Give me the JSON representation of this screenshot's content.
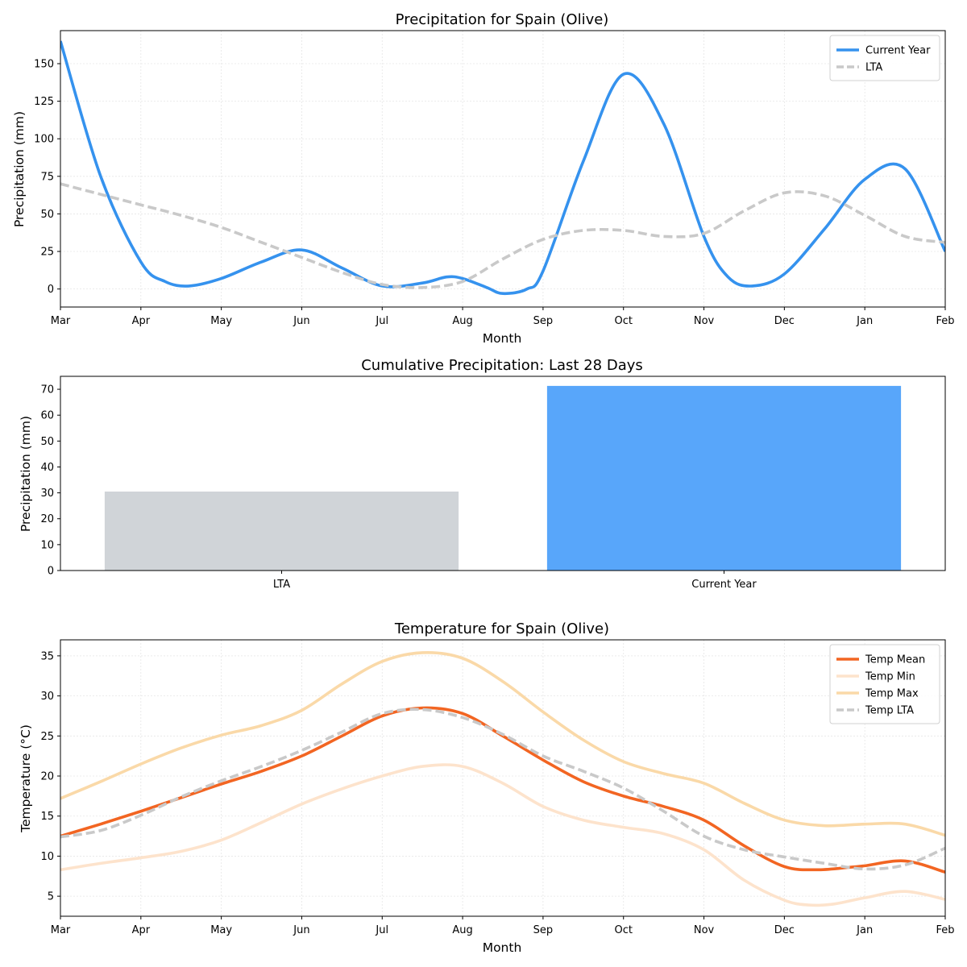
{
  "chart_data": [
    {
      "type": "line",
      "title": "Precipitation for Spain (Olive)",
      "xlabel": "Month",
      "ylabel": "Precipitation (mm)",
      "categories": [
        "Mar",
        "Apr",
        "May",
        "Jun",
        "Jul",
        "Aug",
        "Sep",
        "Oct",
        "Nov",
        "Dec",
        "Jan",
        "Feb"
      ],
      "xlim": [
        0,
        11
      ],
      "ylim": [
        -12,
        172
      ],
      "yticks": [
        0,
        25,
        50,
        75,
        100,
        125,
        150
      ],
      "grid": true,
      "legend": "top-right",
      "series": [
        {
          "name": "Current Year",
          "color": "#3592ee",
          "style": "solid",
          "points": [
            [
              0,
              165
            ],
            [
              0.5,
              75
            ],
            [
              1,
              18
            ],
            [
              1.3,
              5
            ],
            [
              1.6,
              2
            ],
            [
              2,
              7
            ],
            [
              2.5,
              18
            ],
            [
              3,
              26
            ],
            [
              3.5,
              14
            ],
            [
              4,
              2
            ],
            [
              4.5,
              4
            ],
            [
              4.8,
              8
            ],
            [
              5,
              7
            ],
            [
              5.3,
              1
            ],
            [
              5.5,
              -3
            ],
            [
              5.8,
              0
            ],
            [
              6,
              12
            ],
            [
              6.5,
              85
            ],
            [
              7,
              143
            ],
            [
              7.5,
              110
            ],
            [
              8,
              35
            ],
            [
              8.3,
              8
            ],
            [
              8.6,
              2
            ],
            [
              9,
              10
            ],
            [
              9.5,
              40
            ],
            [
              10,
              73
            ],
            [
              10.5,
              80
            ],
            [
              11,
              25
            ]
          ]
        },
        {
          "name": "LTA",
          "color": "#c9c9c9",
          "style": "dashed",
          "points": [
            [
              0,
              70
            ],
            [
              0.5,
              63
            ],
            [
              1,
              56
            ],
            [
              1.5,
              49
            ],
            [
              2,
              41
            ],
            [
              2.5,
              31
            ],
            [
              3,
              21
            ],
            [
              3.5,
              11
            ],
            [
              4,
              3
            ],
            [
              4.5,
              1
            ],
            [
              5,
              5
            ],
            [
              5.5,
              20
            ],
            [
              6,
              33
            ],
            [
              6.5,
              39
            ],
            [
              7,
              39
            ],
            [
              7.5,
              35
            ],
            [
              8,
              37
            ],
            [
              8.5,
              52
            ],
            [
              9,
              64
            ],
            [
              9.5,
              62
            ],
            [
              10,
              49
            ],
            [
              10.5,
              35
            ],
            [
              11,
              31
            ]
          ]
        }
      ]
    },
    {
      "type": "bar",
      "title": "Cumulative Precipitation: Last 28 Days",
      "xlabel": "",
      "ylabel": "Precipitation (mm)",
      "categories": [
        "LTA",
        "Current Year"
      ],
      "values": [
        30.5,
        71.3
      ],
      "colors": [
        "#d0d4d8",
        "#58a6fa"
      ],
      "ylim": [
        0,
        75
      ],
      "yticks": [
        0,
        10,
        20,
        30,
        40,
        50,
        60,
        70
      ]
    },
    {
      "type": "line",
      "title": "Temperature for Spain (Olive)",
      "xlabel": "Month",
      "ylabel": "Temperature (°C)",
      "categories": [
        "Mar",
        "Apr",
        "May",
        "Jun",
        "Jul",
        "Aug",
        "Sep",
        "Oct",
        "Nov",
        "Dec",
        "Jan",
        "Feb"
      ],
      "xlim": [
        0,
        11
      ],
      "ylim": [
        2.5,
        37
      ],
      "yticks": [
        5,
        10,
        15,
        20,
        25,
        30,
        35
      ],
      "grid": true,
      "legend": "top-right",
      "series": [
        {
          "name": "Temp Mean",
          "color": "#f26522",
          "style": "solid",
          "points": [
            [
              0,
              12.5
            ],
            [
              0.5,
              14
            ],
            [
              1,
              15.6
            ],
            [
              1.5,
              17.3
            ],
            [
              2,
              19
            ],
            [
              2.5,
              20.6
            ],
            [
              3,
              22.5
            ],
            [
              3.5,
              25
            ],
            [
              4,
              27.5
            ],
            [
              4.5,
              28.5
            ],
            [
              5,
              27.8
            ],
            [
              5.5,
              25
            ],
            [
              6,
              22
            ],
            [
              6.5,
              19.3
            ],
            [
              7,
              17.5
            ],
            [
              7.5,
              16.2
            ],
            [
              8,
              14.5
            ],
            [
              8.5,
              11.3
            ],
            [
              9,
              8.7
            ],
            [
              9.4,
              8.3
            ],
            [
              9.8,
              8.6
            ],
            [
              10,
              8.8
            ],
            [
              10.5,
              9.4
            ],
            [
              11,
              8
            ]
          ]
        },
        {
          "name": "Temp Min",
          "color": "#fde3cc",
          "style": "solid",
          "points": [
            [
              0,
              8.3
            ],
            [
              0.5,
              9.1
            ],
            [
              1,
              9.8
            ],
            [
              1.5,
              10.6
            ],
            [
              2,
              12
            ],
            [
              2.5,
              14.2
            ],
            [
              3,
              16.5
            ],
            [
              3.5,
              18.4
            ],
            [
              4,
              20
            ],
            [
              4.5,
              21.2
            ],
            [
              5,
              21.2
            ],
            [
              5.5,
              19.1
            ],
            [
              6,
              16.2
            ],
            [
              6.5,
              14.5
            ],
            [
              7,
              13.6
            ],
            [
              7.5,
              12.8
            ],
            [
              8,
              10.8
            ],
            [
              8.5,
              7
            ],
            [
              9,
              4.5
            ],
            [
              9.3,
              3.9
            ],
            [
              9.6,
              4
            ],
            [
              10,
              4.8
            ],
            [
              10.5,
              5.6
            ],
            [
              11,
              4.6
            ]
          ]
        },
        {
          "name": "Temp Max",
          "color": "#fad9a8",
          "style": "solid",
          "points": [
            [
              0,
              17.2
            ],
            [
              0.5,
              19.3
            ],
            [
              1,
              21.5
            ],
            [
              1.5,
              23.5
            ],
            [
              2,
              25.1
            ],
            [
              2.5,
              26.3
            ],
            [
              3,
              28.2
            ],
            [
              3.5,
              31.5
            ],
            [
              4,
              34.3
            ],
            [
              4.5,
              35.4
            ],
            [
              5,
              34.7
            ],
            [
              5.5,
              31.8
            ],
            [
              6,
              28
            ],
            [
              6.5,
              24.5
            ],
            [
              7,
              21.8
            ],
            [
              7.5,
              20.3
            ],
            [
              8,
              19.1
            ],
            [
              8.5,
              16.6
            ],
            [
              9,
              14.5
            ],
            [
              9.5,
              13.8
            ],
            [
              10,
              14
            ],
            [
              10.5,
              14
            ],
            [
              11,
              12.6
            ]
          ]
        },
        {
          "name": "Temp LTA",
          "color": "#c9c9c9",
          "style": "dashed",
          "points": [
            [
              0,
              12.4
            ],
            [
              0.5,
              13.2
            ],
            [
              1,
              15.1
            ],
            [
              1.5,
              17.4
            ],
            [
              2,
              19.4
            ],
            [
              2.5,
              21.2
            ],
            [
              3,
              23.2
            ],
            [
              3.5,
              25.5
            ],
            [
              4,
              27.8
            ],
            [
              4.5,
              28.3
            ],
            [
              5,
              27.3
            ],
            [
              5.5,
              25.2
            ],
            [
              6,
              22.5
            ],
            [
              6.5,
              20.6
            ],
            [
              7,
              18.5
            ],
            [
              7.5,
              15.6
            ],
            [
              8,
              12.5
            ],
            [
              8.5,
              10.8
            ],
            [
              9,
              9.9
            ],
            [
              9.5,
              9.1
            ],
            [
              10,
              8.4
            ],
            [
              10.5,
              8.9
            ],
            [
              11,
              11
            ]
          ]
        }
      ]
    }
  ]
}
